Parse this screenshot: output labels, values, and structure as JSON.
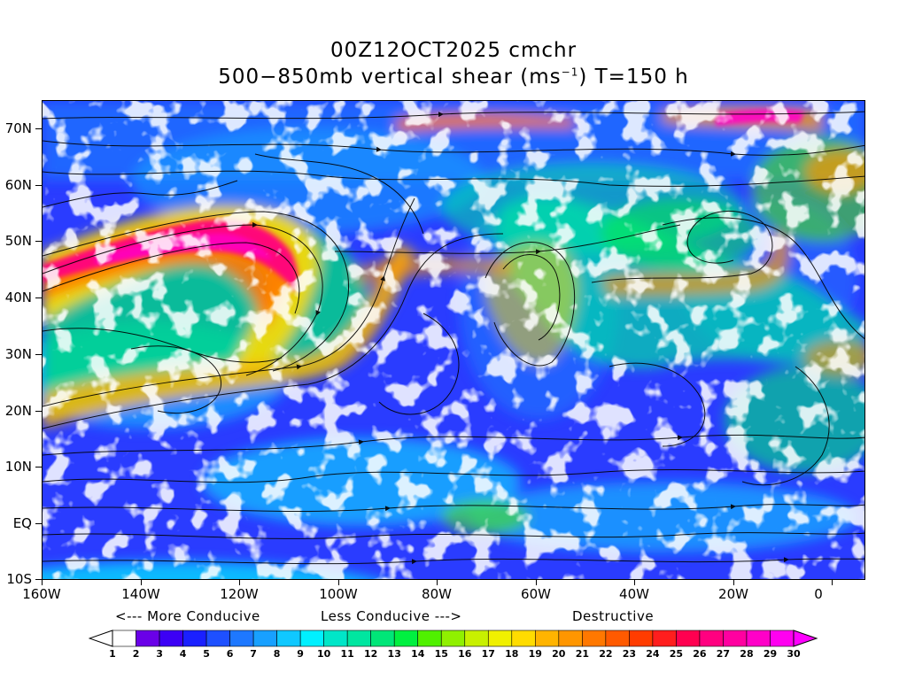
{
  "title": {
    "line1": "00Z12OCT2025 cmchr",
    "line2_prefix": "500−850mb vertical shear (ms",
    "line2_sup": "−1",
    "line2_suffix": ") T=150 h"
  },
  "lat_labels": [
    "70N",
    "60N",
    "50N",
    "40N",
    "30N",
    "20N",
    "10N",
    "EQ",
    "10S"
  ],
  "lon_labels": [
    "160W",
    "140W",
    "120W",
    "100W",
    "80W",
    "60W",
    "40W",
    "20W",
    "0"
  ],
  "legend": {
    "more_conducive": "<--- More Conducive",
    "less_conducive": "Less Conducive --->",
    "destructive": "Destructive"
  },
  "colorbar": {
    "labels": [
      "1",
      "2",
      "3",
      "4",
      "5",
      "6",
      "7",
      "8",
      "9",
      "10",
      "11",
      "12",
      "13",
      "14",
      "15",
      "16",
      "17",
      "18",
      "19",
      "20",
      "21",
      "22",
      "23",
      "24",
      "25",
      "26",
      "27",
      "28",
      "29",
      "30"
    ],
    "colors": [
      "#ffffff",
      "#6a00e8",
      "#3c00f5",
      "#1a20ff",
      "#1e50ff",
      "#1e78ff",
      "#18a0ff",
      "#10c8ff",
      "#00f0ff",
      "#00e6c8",
      "#00e6a0",
      "#00e678",
      "#00f040",
      "#50f000",
      "#90f000",
      "#c8f000",
      "#f0f000",
      "#ffdc00",
      "#ffb400",
      "#ff9600",
      "#ff7800",
      "#ff5a00",
      "#ff3c00",
      "#ff1e1e",
      "#ff0050",
      "#ff0080",
      "#ff00a0",
      "#ff00c8",
      "#ff00f0"
    ],
    "left_arrow_color": "#ffffff",
    "right_arrow_color": "#ff00ff"
  }
}
